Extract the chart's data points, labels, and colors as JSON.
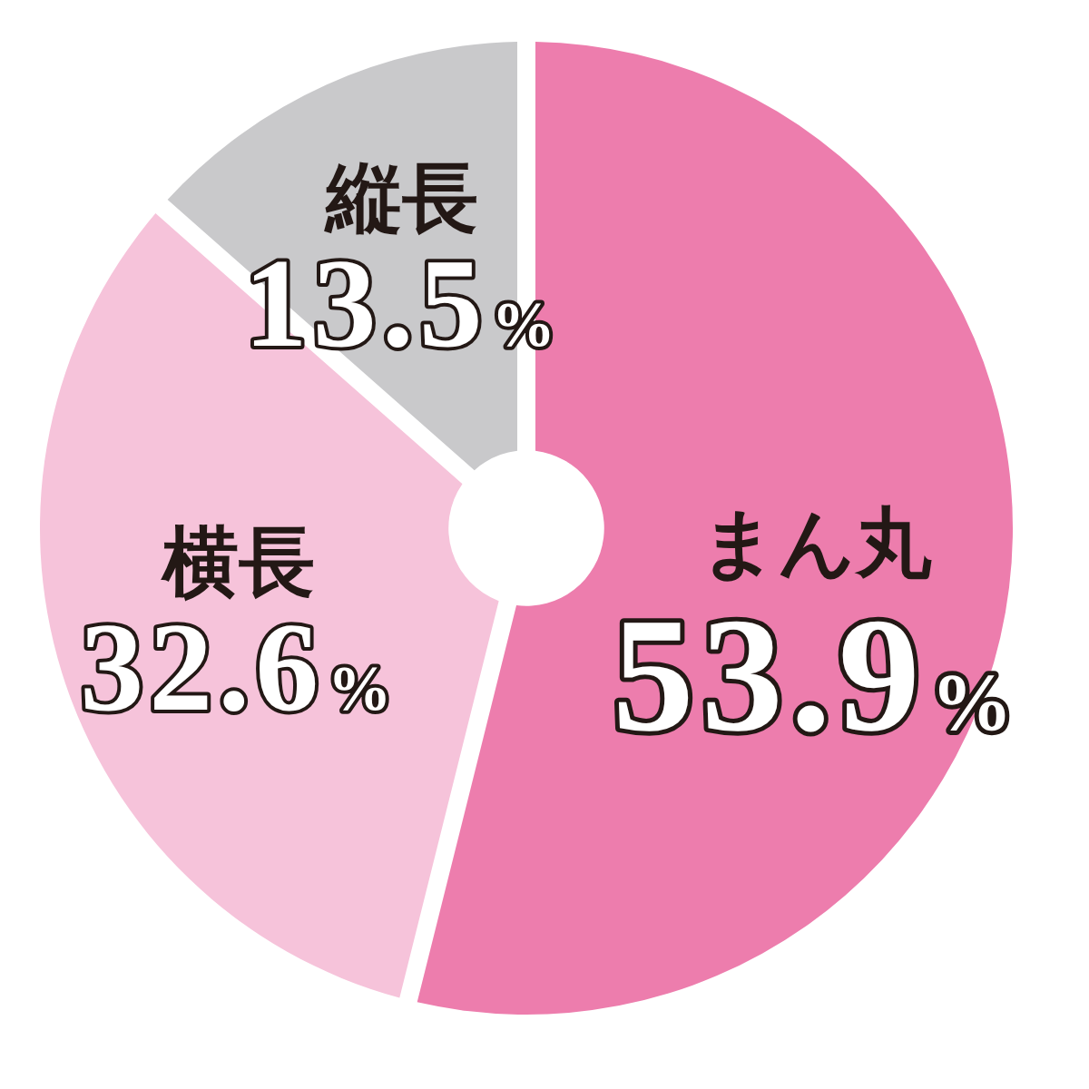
{
  "chart_data": {
    "type": "donut",
    "categories": [
      "まん丸",
      "横長",
      "縦長"
    ],
    "values": [
      53.9,
      32.6,
      13.5
    ],
    "colors": [
      "#ed7dad",
      "#f6c3da",
      "#c9c9cb"
    ],
    "value_labels": [
      "53.9%",
      "32.6%",
      "13.5%"
    ]
  }
}
